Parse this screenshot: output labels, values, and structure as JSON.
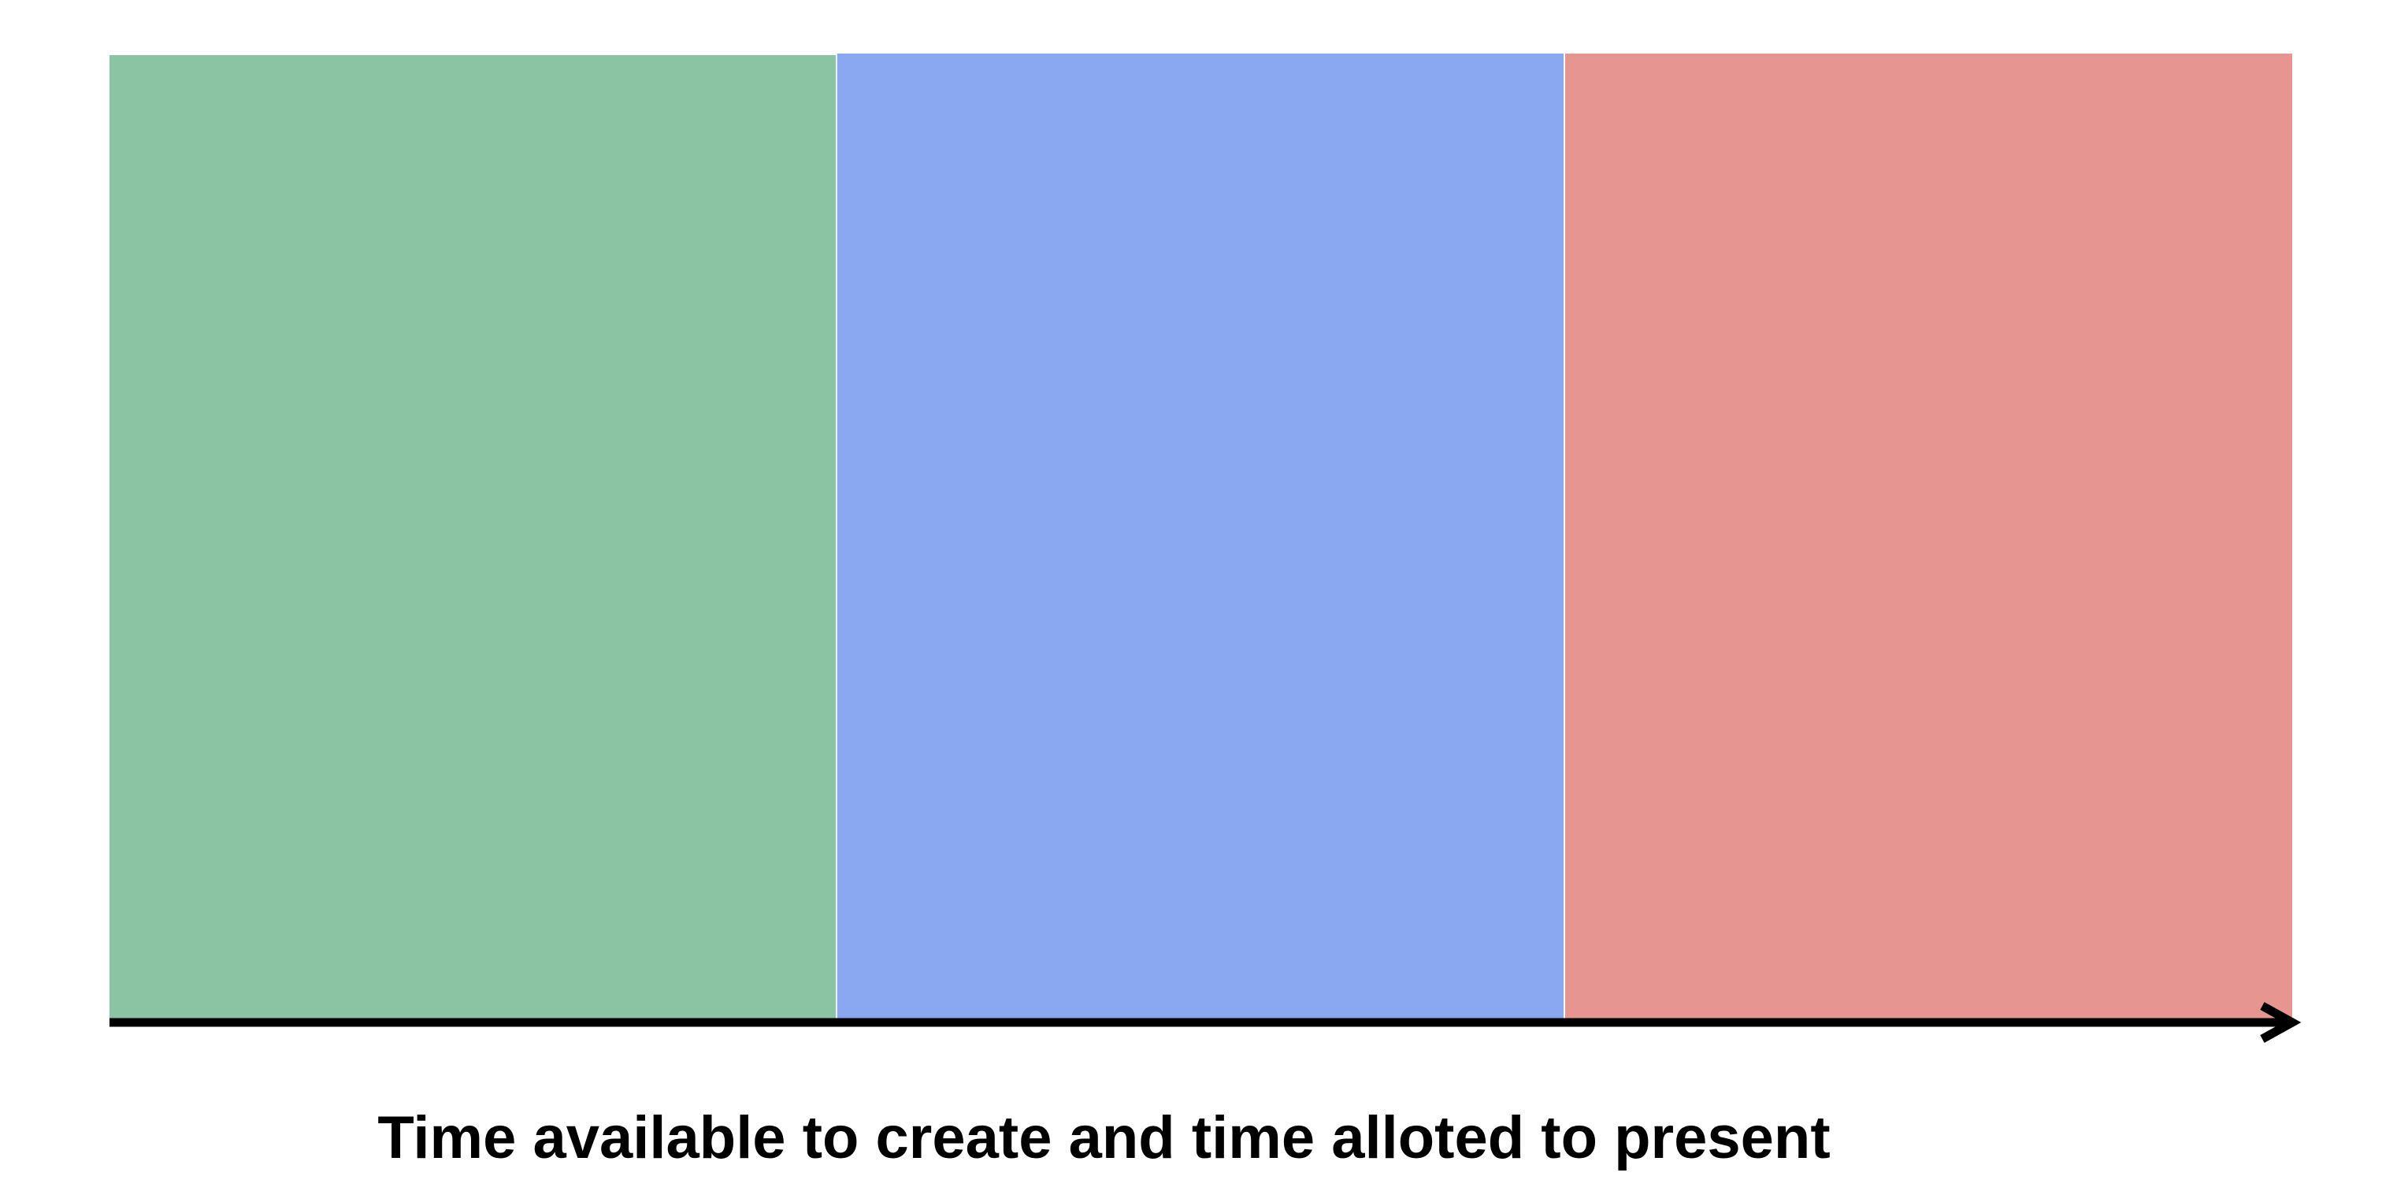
{
  "diagram": {
    "caption": "Time available to create and time alloted to present",
    "segments": [
      {
        "color": "#8ac4a2"
      },
      {
        "color": "#8aa8f2"
      },
      {
        "color": "#e69590"
      }
    ],
    "axis_color": "#000000"
  }
}
